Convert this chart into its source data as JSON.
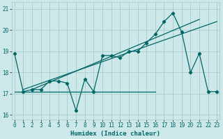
{
  "xlabel": "Humidex (Indice chaleur)",
  "bg_color": "#cce8e8",
  "grid_color": "#aacccc",
  "line_color": "#006666",
  "xlim": [
    0,
    23
  ],
  "ylim": [
    15.8,
    21.3
  ],
  "xticks": [
    0,
    1,
    2,
    3,
    4,
    5,
    6,
    7,
    8,
    9,
    10,
    11,
    12,
    13,
    14,
    15,
    16,
    17,
    18,
    19,
    20,
    21,
    22,
    23
  ],
  "yticks": [
    16,
    17,
    18,
    19,
    20,
    21
  ],
  "line1_x": [
    0,
    1,
    2,
    3,
    4,
    5,
    6,
    7,
    8,
    9,
    10,
    11,
    12,
    13,
    14,
    15,
    16,
    17,
    18,
    19,
    20,
    21,
    22,
    23
  ],
  "line1_y": [
    18.9,
    17.1,
    17.2,
    17.2,
    17.6,
    17.6,
    17.5,
    16.2,
    17.7,
    17.1,
    18.8,
    18.8,
    18.7,
    19.0,
    19.0,
    19.4,
    19.8,
    20.4,
    20.8,
    19.9,
    18.0,
    18.9,
    17.1,
    17.1
  ],
  "flat_line_x": [
    0,
    16
  ],
  "flat_line_y": [
    17.1,
    17.1
  ],
  "trend1_x": [
    1,
    23
  ],
  "trend1_y": [
    17.2,
    20.4
  ],
  "trend2_x": [
    2,
    21
  ],
  "trend2_y": [
    17.2,
    20.5
  ]
}
